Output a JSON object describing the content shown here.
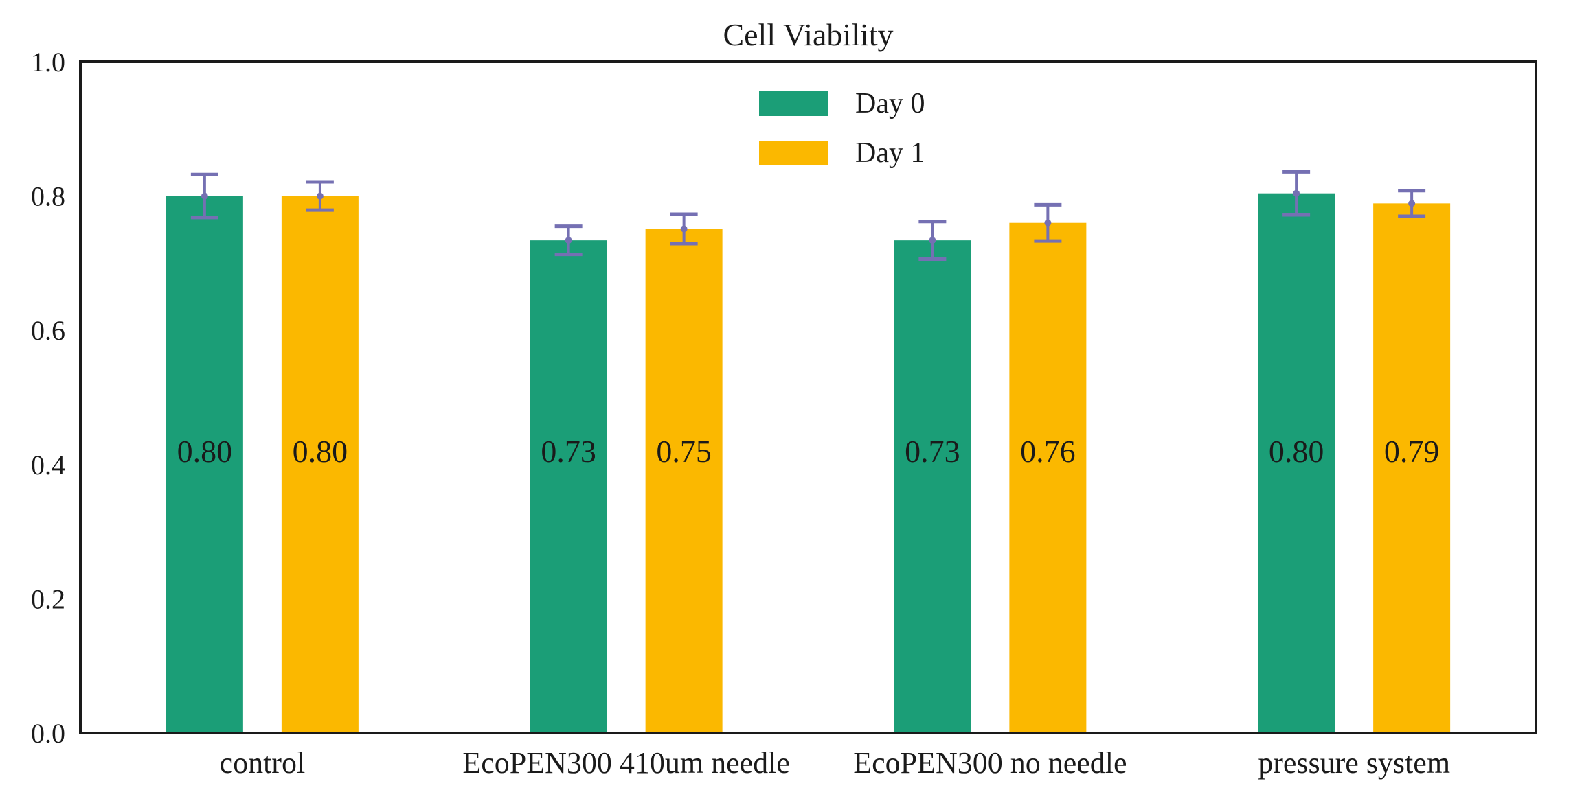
{
  "chart_data": {
    "type": "bar",
    "title": "Cell Viability",
    "xlabel": "",
    "ylabel": "",
    "ylim": [
      0,
      1.0
    ],
    "yticks": [
      "0.0",
      "0.2",
      "0.4",
      "0.6",
      "0.8",
      "1.0"
    ],
    "categories": [
      "control",
      "EcoPEN300 410um needle",
      "EcoPEN300 no needle",
      "pressure system"
    ],
    "series": [
      {
        "name": "Day 0",
        "color": "#1b9e77",
        "values": [
          0.8,
          0.734,
          0.734,
          0.804
        ],
        "labels": [
          "0.80",
          "0.73",
          "0.73",
          "0.80"
        ],
        "errors": [
          0.032,
          0.021,
          0.028,
          0.032
        ]
      },
      {
        "name": "Day 1",
        "color": "#fbb800",
        "values": [
          0.8,
          0.751,
          0.76,
          0.789
        ],
        "labels": [
          "0.80",
          "0.75",
          "0.76",
          "0.79"
        ],
        "errors": [
          0.021,
          0.022,
          0.027,
          0.019
        ]
      }
    ],
    "error_bar_color": "#7570b3",
    "legend": "upper-center",
    "grid": false
  }
}
